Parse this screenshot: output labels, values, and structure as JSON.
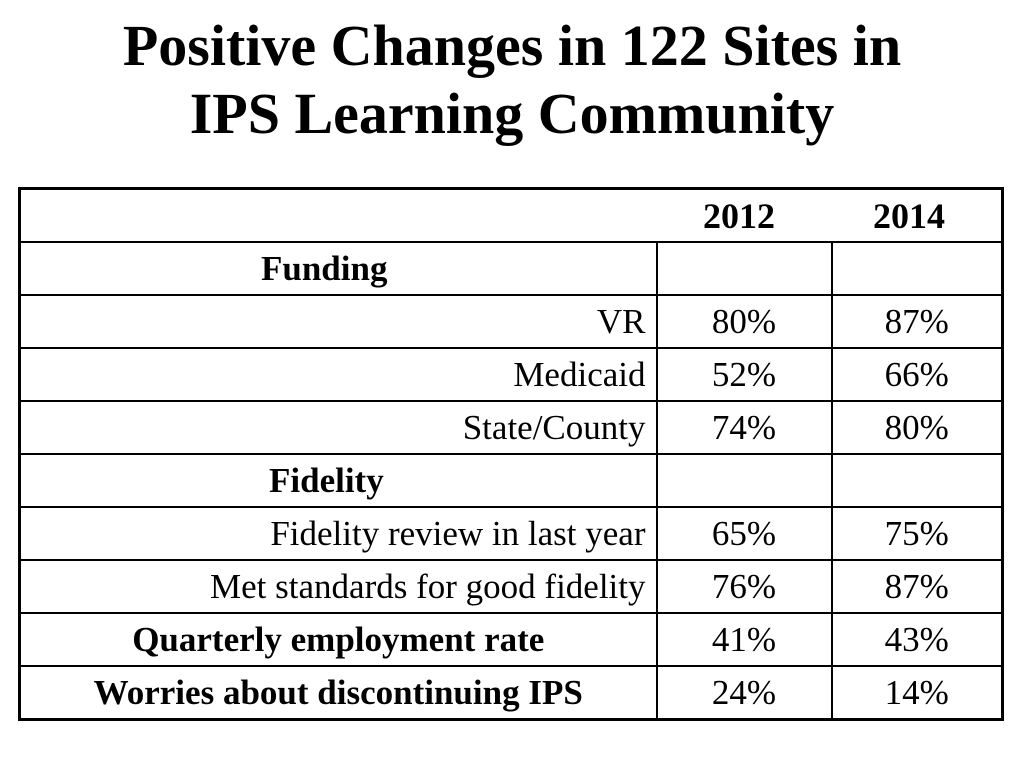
{
  "title": {
    "line1": "Positive Changes in 122 Sites in",
    "line2": "IPS Learning Community"
  },
  "table": {
    "years": [
      "2012",
      "2014"
    ],
    "rows": [
      {
        "label": "Funding",
        "v2012": "",
        "v2014": ""
      },
      {
        "label": "VR",
        "v2012": "80%",
        "v2014": "87%"
      },
      {
        "label": "Medicaid",
        "v2012": "52%",
        "v2014": "66%"
      },
      {
        "label": "State/County",
        "v2012": "74%",
        "v2014": "80%"
      },
      {
        "label": "Fidelity",
        "v2012": "",
        "v2014": ""
      },
      {
        "label": "Fidelity review in last year",
        "v2012": "65%",
        "v2014": "75%"
      },
      {
        "label": "Met standards for good fidelity",
        "v2012": "76%",
        "v2014": "87%"
      },
      {
        "label": "Quarterly employment rate",
        "v2012": "41%",
        "v2014": "43%"
      },
      {
        "label": "Worries about discontinuing IPS",
        "v2012": "24%",
        "v2014": "14%"
      }
    ]
  }
}
